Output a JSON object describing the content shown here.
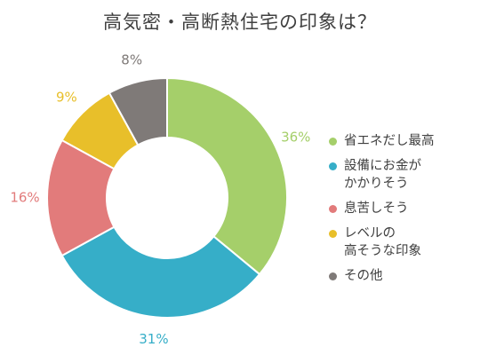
{
  "chart_data": {
    "type": "pie",
    "title": "高気密・高断熱住宅の印象は？",
    "donut": true,
    "legend_position": "right",
    "slices": [
      {
        "label": "省エネだし最高",
        "value": 36,
        "value_label": "36%",
        "color": "#a5cf6a"
      },
      {
        "label": "設備にお金が\nかかりそう",
        "value": 31,
        "value_label": "31%",
        "color": "#36aec8"
      },
      {
        "label": "息苦しそう",
        "value": 16,
        "value_label": "16%",
        "color": "#e27b7b"
      },
      {
        "label": "レベルの\n高そうな印象",
        "value": 9,
        "value_label": "9%",
        "color": "#e8bf2a"
      },
      {
        "label": "その他",
        "value": 8,
        "value_label": "8%",
        "color": "#7f7a78"
      }
    ]
  }
}
